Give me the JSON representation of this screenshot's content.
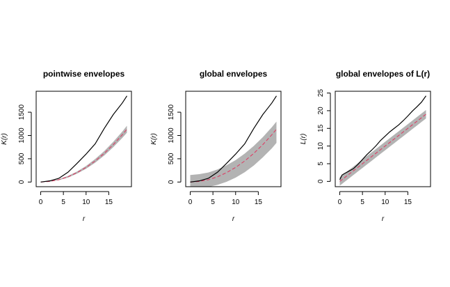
{
  "chart_data": [
    {
      "type": "line",
      "title": "pointwise envelopes",
      "xlabel": "r",
      "ylabel": "K(r)",
      "xlim": [
        -1,
        20
      ],
      "ylim": [
        -100,
        1950
      ],
      "xticks": [
        "0",
        "5",
        "10",
        "15"
      ],
      "xtick_values": [
        0,
        5,
        10,
        15
      ],
      "yticks": [
        "0",
        "500",
        "1000",
        "1500"
      ],
      "ytick_values": [
        0,
        500,
        1000,
        1500
      ],
      "x": [
        0,
        2,
        4,
        6,
        8,
        10,
        12,
        14,
        16,
        18,
        19
      ],
      "observed": [
        0,
        25,
        80,
        210,
        400,
        600,
        820,
        1150,
        1450,
        1700,
        1850
      ],
      "theoretical": [
        0,
        13,
        50,
        113,
        201,
        314,
        452,
        616,
        804,
        1018,
        1134
      ],
      "envelope_lower": [
        0,
        8,
        40,
        95,
        180,
        285,
        415,
        570,
        750,
        950,
        1060
      ],
      "envelope_upper": [
        0,
        20,
        62,
        130,
        225,
        345,
        495,
        665,
        865,
        1085,
        1210
      ],
      "colors": {
        "observed": "#000000",
        "theoretical": "#e0345e",
        "envelope": "#b3b3b3"
      }
    },
    {
      "type": "line",
      "title": "global envelopes",
      "xlabel": "r",
      "ylabel": "K(r)",
      "xlim": [
        -1,
        20
      ],
      "ylim": [
        -100,
        1950
      ],
      "xticks": [
        "0",
        "5",
        "10",
        "15"
      ],
      "xtick_values": [
        0,
        5,
        10,
        15
      ],
      "yticks": [
        "0",
        "500",
        "1000",
        "1500"
      ],
      "ytick_values": [
        0,
        500,
        1000,
        1500
      ],
      "x": [
        0,
        2,
        4,
        6,
        8,
        10,
        12,
        14,
        16,
        18,
        19
      ],
      "observed": [
        0,
        25,
        80,
        210,
        400,
        600,
        820,
        1150,
        1450,
        1700,
        1850
      ],
      "theoretical": [
        0,
        13,
        50,
        113,
        201,
        314,
        452,
        616,
        804,
        1018,
        1134
      ],
      "envelope_lower": [
        -150,
        -140,
        -105,
        -60,
        5,
        95,
        210,
        355,
        530,
        725,
        840
      ],
      "envelope_upper": [
        150,
        170,
        205,
        270,
        360,
        470,
        610,
        775,
        965,
        1180,
        1300
      ],
      "colors": {
        "observed": "#000000",
        "theoretical": "#e0345e",
        "envelope": "#b3b3b3"
      }
    },
    {
      "type": "line",
      "title": "global envelopes of L(r)",
      "xlabel": "r",
      "ylabel": "L(r)",
      "xlim": [
        -1,
        20
      ],
      "ylim": [
        -1.5,
        25.5
      ],
      "xticks": [
        "0",
        "5",
        "10",
        "15"
      ],
      "xtick_values": [
        0,
        5,
        10,
        15
      ],
      "yticks": [
        "0",
        "5",
        "10",
        "15",
        "20",
        "25"
      ],
      "ytick_values": [
        0,
        5,
        10,
        15,
        20,
        25
      ],
      "x": [
        0,
        0.5,
        1,
        2,
        3,
        4,
        5,
        6,
        7,
        8,
        9,
        10,
        11,
        12,
        13,
        14,
        15,
        16,
        17,
        18,
        19
      ],
      "observed": [
        0.5,
        1.8,
        2.2,
        2.9,
        3.6,
        4.8,
        6.2,
        7.6,
        8.8,
        10.1,
        11.6,
        12.8,
        14.0,
        15.0,
        16.0,
        17.2,
        18.5,
        19.9,
        21.1,
        22.4,
        24.2
      ],
      "theoretical": [
        0,
        0.5,
        1,
        2,
        3,
        4,
        5,
        6,
        7,
        8,
        9,
        10,
        11,
        12,
        13,
        14,
        15,
        16,
        17,
        18,
        19
      ],
      "envelope_lower": [
        -1.2,
        -0.7,
        -0.2,
        0.8,
        1.8,
        2.8,
        3.8,
        4.8,
        5.8,
        6.8,
        7.8,
        8.8,
        9.8,
        10.8,
        11.8,
        12.8,
        13.8,
        14.8,
        15.8,
        16.8,
        17.8
      ],
      "envelope_upper": [
        1.2,
        1.7,
        2.2,
        3.2,
        4.2,
        5.2,
        6.2,
        7.2,
        8.2,
        9.2,
        10.2,
        11.2,
        12.2,
        13.2,
        14.2,
        15.2,
        16.2,
        17.2,
        18.2,
        19.2,
        20.2
      ],
      "colors": {
        "observed": "#000000",
        "theoretical": "#e0345e",
        "envelope": "#b3b3b3"
      }
    }
  ]
}
